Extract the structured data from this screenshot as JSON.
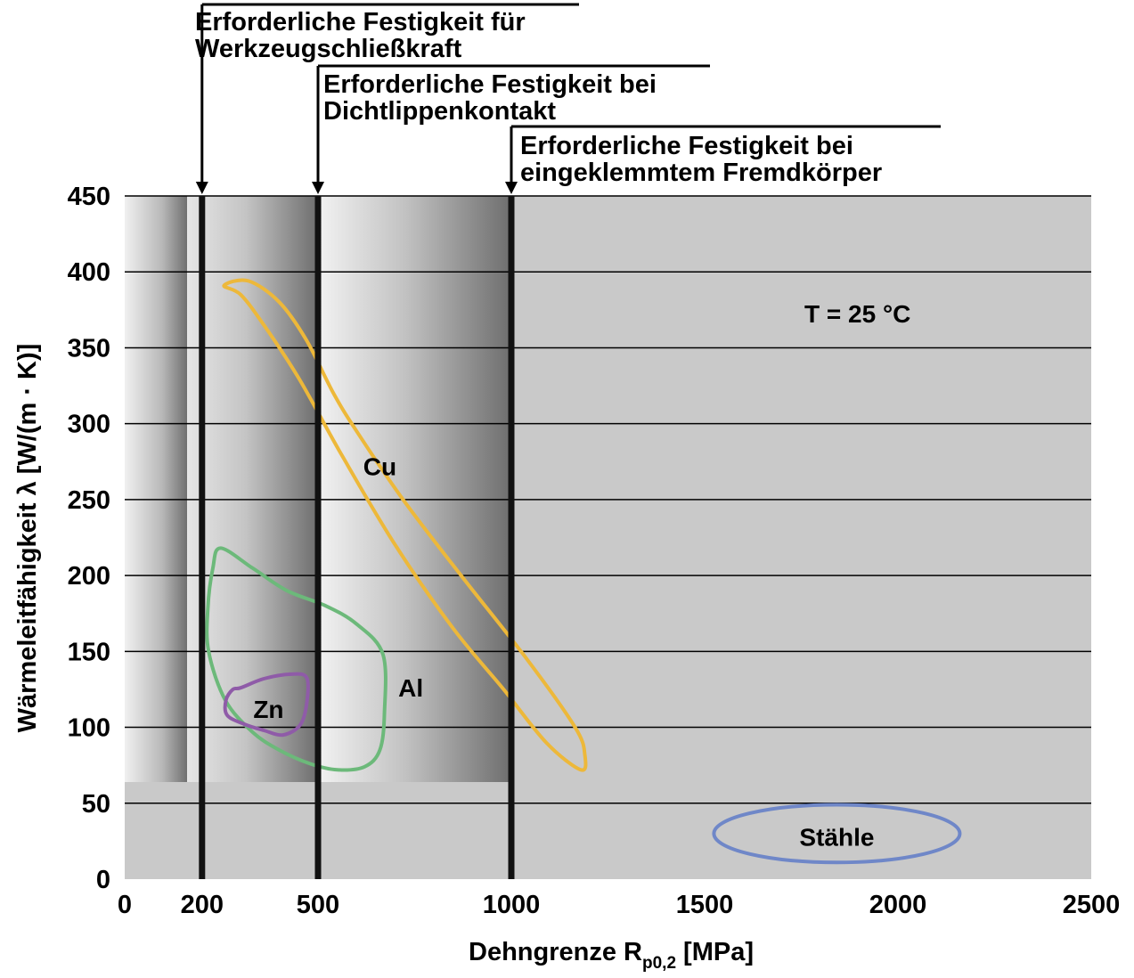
{
  "chart_data": {
    "type": "scatter",
    "title": "",
    "xlabel": "Dehngrenze R",
    "xlabel_subscript": "p0,2",
    "xlabel_unit": "[MPa]",
    "ylabel": "Wärmeleitfähigkeit λ [W/(m · K)]",
    "xlim": [
      0,
      2500
    ],
    "ylim": [
      0,
      450
    ],
    "xticks": [
      0,
      200,
      500,
      1000,
      1500,
      2000,
      2500
    ],
    "xtick_labels": [
      "0",
      "200",
      "500",
      "1000",
      "1500",
      "2000",
      "2500"
    ],
    "yticks": [
      0,
      50,
      100,
      150,
      200,
      250,
      300,
      350,
      400,
      450
    ],
    "ytick_labels": [
      "0",
      "50",
      "100",
      "150",
      "200",
      "250",
      "300",
      "350",
      "400",
      "450"
    ],
    "grid": "horizontal",
    "annotation": "T = 25 °C",
    "thresholds": [
      {
        "x": 200,
        "label_lines": [
          "Erforderliche Festigkeit für",
          "Werkzeugschließkraft"
        ]
      },
      {
        "x": 500,
        "label_lines": [
          "Erforderliche Festigkeit bei",
          "Dichtlippenkontakt"
        ]
      },
      {
        "x": 1000,
        "label_lines": [
          "Erforderliche Festigkeit bei",
          "eingeklemmtem Fremdkörper"
        ]
      }
    ],
    "regions": [
      {
        "name": "Cu",
        "color": "#EDB83A",
        "label_at": [
          660,
          272
        ],
        "outline": [
          [
            257,
            391
          ],
          [
            300,
            385
          ],
          [
            360,
            365
          ],
          [
            450,
            330
          ],
          [
            560,
            280
          ],
          [
            700,
            220
          ],
          [
            850,
            165
          ],
          [
            980,
            125
          ],
          [
            1090,
            90
          ],
          [
            1180,
            72
          ],
          [
            1190,
            82
          ],
          [
            1165,
            100
          ],
          [
            1040,
            145
          ],
          [
            870,
            200
          ],
          [
            720,
            250
          ],
          [
            600,
            295
          ],
          [
            540,
            320
          ],
          [
            470,
            355
          ],
          [
            400,
            380
          ],
          [
            320,
            394
          ]
        ]
      },
      {
        "name": "Al",
        "color": "#6CB97A",
        "label_at": [
          740,
          126
        ],
        "outline": [
          [
            248,
            218
          ],
          [
            330,
            205
          ],
          [
            420,
            190
          ],
          [
            520,
            180
          ],
          [
            600,
            168
          ],
          [
            668,
            148
          ],
          [
            672,
            110
          ],
          [
            660,
            85
          ],
          [
            620,
            74
          ],
          [
            550,
            72
          ],
          [
            480,
            76
          ],
          [
            400,
            85
          ],
          [
            330,
            97
          ],
          [
            260,
            118
          ],
          [
            217,
            150
          ],
          [
            215,
            178
          ],
          [
            228,
            205
          ]
        ]
      },
      {
        "name": "Zn",
        "color": "#8F5BA8",
        "label_at": [
          372,
          112
        ],
        "outline": [
          [
            300,
            126
          ],
          [
            360,
            132
          ],
          [
            430,
            135
          ],
          [
            470,
            133
          ],
          [
            472,
            118
          ],
          [
            455,
            102
          ],
          [
            410,
            95
          ],
          [
            360,
            98
          ],
          [
            310,
            102
          ],
          [
            265,
            108
          ],
          [
            262,
            118
          ],
          [
            280,
            125
          ]
        ]
      },
      {
        "name": "Stähle",
        "color": "#6F87C8",
        "label_at": [
          1842,
          28
        ],
        "ellipse": {
          "cx": 1842,
          "cy": 30,
          "rx": 318,
          "ry": 19
        }
      }
    ]
  },
  "styling": {
    "plot_background": "#c9c9c9",
    "gridline_color": "#000000",
    "threshold_line_color": "#111111"
  }
}
